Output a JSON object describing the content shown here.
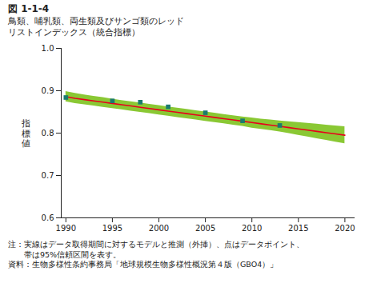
{
  "chart_data": {
    "type": "line",
    "title": "図 1-1-4",
    "subtitle": "鳥類、哺乳類、両生類及びサンゴ類のレッド\nリストインデックス（統合指標）",
    "y_label": "指\n標\n値",
    "x": [
      1990,
      1991,
      1992,
      1993,
      1994,
      1995,
      1996,
      1997,
      1998,
      1999,
      2000,
      2001,
      2002,
      2003,
      2004,
      2005,
      2006,
      2007,
      2008,
      2009,
      2010,
      2011,
      2012,
      2013,
      2014,
      2015,
      2016,
      2017,
      2018,
      2019,
      2020
    ],
    "series": [
      {
        "type": "area",
        "color": "#7dc21e",
        "lower": [
          0.874,
          0.87,
          0.867,
          0.864,
          0.861,
          0.858,
          0.855,
          0.852,
          0.849,
          0.846,
          0.843,
          0.84,
          0.837,
          0.834,
          0.831,
          0.828,
          0.825,
          0.822,
          0.819,
          0.816,
          0.812,
          0.809,
          0.806,
          0.803,
          0.799,
          0.795,
          0.791,
          0.787,
          0.783,
          0.779,
          0.775
        ],
        "upper": [
          0.898,
          0.894,
          0.89,
          0.887,
          0.884,
          0.88,
          0.877,
          0.874,
          0.871,
          0.868,
          0.865,
          0.862,
          0.859,
          0.856,
          0.853,
          0.85,
          0.847,
          0.844,
          0.841,
          0.838,
          0.836,
          0.833,
          0.831,
          0.829,
          0.827,
          0.825,
          0.823,
          0.821,
          0.819,
          0.817,
          0.815
        ]
      },
      {
        "type": "line",
        "color": "#e8001c",
        "values": [
          0.886,
          0.882,
          0.879,
          0.876,
          0.873,
          0.87,
          0.867,
          0.864,
          0.861,
          0.858,
          0.855,
          0.852,
          0.849,
          0.846,
          0.843,
          0.84,
          0.837,
          0.834,
          0.831,
          0.828,
          0.825,
          0.822,
          0.819,
          0.816,
          0.813,
          0.81,
          0.807,
          0.804,
          0.801,
          0.798,
          0.795
        ]
      },
      {
        "type": "scatter",
        "color": "#1a7b6e",
        "marker": "square",
        "x": [
          1990,
          1995,
          1998,
          2001,
          2005,
          2009,
          2013
        ],
        "values": [
          0.884,
          0.876,
          0.873,
          0.862,
          0.848,
          0.829,
          0.818
        ]
      }
    ],
    "xlim": [
      1989.5,
      2021
    ],
    "xticks": [
      1990,
      1995,
      2000,
      2005,
      2010,
      2015,
      2020
    ],
    "ylim": [
      0.6,
      1.0
    ],
    "yticks": [
      0.6,
      0.7,
      0.8,
      0.9,
      {
        "value": 1.0,
        "label": "1.0"
      }
    ],
    "grid": false,
    "annotations": [
      "注：実線はデータ取得期間に対するモデルと推測（外挿）、点はデータポイント、",
      "　　帯は95%信頼区間を表す。",
      "資料：生物多様性条約事務局「地球規模生物多様性概況第４版（GBO4）」"
    ]
  }
}
